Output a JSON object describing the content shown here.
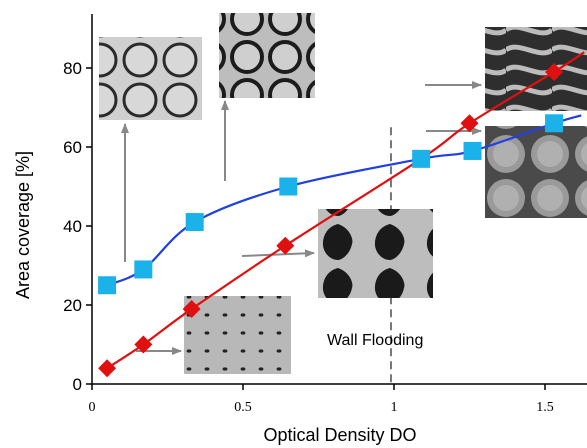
{
  "chart_data": {
    "type": "line",
    "title": "",
    "xlabel": "Optical Density DO",
    "ylabel": "Area coverage  [%]",
    "xlim": [
      0,
      1.9
    ],
    "ylim": [
      0,
      95
    ],
    "x_ticks": [
      {
        "value": 0,
        "label": "0"
      },
      {
        "value": 0.5,
        "label": "0.5"
      },
      {
        "value": 1,
        "label": "1"
      },
      {
        "value": 1.5,
        "label": "1.5"
      }
    ],
    "y_ticks": [
      {
        "value": 0,
        "label": "0"
      },
      {
        "value": 20,
        "label": "20"
      },
      {
        "value": 40,
        "label": "40"
      },
      {
        "value": 60,
        "label": "60"
      },
      {
        "value": 80,
        "label": "80"
      }
    ],
    "series": [
      {
        "color": "#e01010",
        "marker": "diamond",
        "line_color": "#e01010",
        "x": [
          0.05,
          0.17,
          0.33,
          0.64,
          1.09,
          1.25,
          1.53
        ],
        "y": [
          4,
          10,
          19,
          35,
          57,
          66,
          79
        ],
        "curve_end": [
          1.63,
          84
        ]
      },
      {
        "color": "#1ab2e8",
        "marker": "square",
        "line_color": "#2040e0",
        "x": [
          0.05,
          0.17,
          0.34,
          0.65,
          1.09,
          1.26,
          1.53
        ],
        "y": [
          25,
          29,
          41,
          50,
          57,
          59,
          66
        ],
        "curve_end": [
          1.62,
          68
        ]
      }
    ],
    "threshold_line": {
      "x": 0.99,
      "style": "dashed"
    },
    "annotation": {
      "text": "Wall Flooding"
    }
  }
}
